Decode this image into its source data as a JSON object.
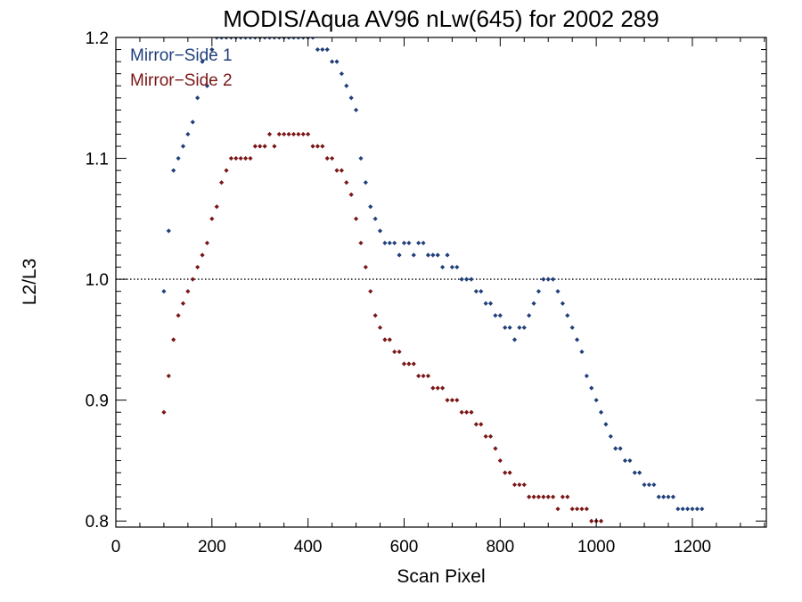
{
  "chart_data": {
    "type": "scatter",
    "title": "MODIS/Aqua AV96 nLw(645) for 2002 289",
    "xlabel": "Scan Pixel",
    "ylabel": "L2/L3",
    "xlim": [
      0,
      1354
    ],
    "ylim": [
      0.795,
      1.2
    ],
    "x_ticks": [
      0,
      200,
      400,
      600,
      800,
      1000,
      1200
    ],
    "y_ticks": [
      0.8,
      0.9,
      1.0,
      1.1,
      1.2
    ],
    "x_tick_labels": [
      "0",
      "200",
      "400",
      "600",
      "800",
      "1000",
      "1200"
    ],
    "y_tick_labels": [
      "0.8",
      "0.9",
      "1.0",
      "1.1",
      "1.2"
    ],
    "reference_line": {
      "y": 1.0,
      "style": "dotted"
    },
    "legend_position": "top-left",
    "series": [
      {
        "name": "Mirror−Side 1",
        "color": "#1f3f7a",
        "x": [
          100,
          110,
          120,
          130,
          140,
          150,
          160,
          170,
          180,
          190,
          200,
          210,
          220,
          230,
          240,
          250,
          260,
          270,
          280,
          290,
          300,
          310,
          320,
          330,
          340,
          350,
          360,
          370,
          380,
          390,
          400,
          410,
          420,
          430,
          440,
          450,
          460,
          470,
          480,
          490,
          500,
          510,
          520,
          530,
          540,
          550,
          560,
          570,
          580,
          590,
          600,
          610,
          620,
          630,
          640,
          650,
          660,
          670,
          680,
          690,
          700,
          710,
          720,
          730,
          740,
          750,
          760,
          770,
          780,
          790,
          800,
          810,
          820,
          830,
          840,
          850,
          860,
          870,
          880,
          890,
          900,
          910,
          920,
          930,
          940,
          950,
          960,
          970,
          980,
          990,
          1000,
          1010,
          1020,
          1030,
          1040,
          1050,
          1060,
          1070,
          1080,
          1090,
          1100,
          1110,
          1120,
          1130,
          1140,
          1150,
          1160,
          1170,
          1180,
          1190,
          1200,
          1210,
          1220
        ],
        "y": [
          0.99,
          1.04,
          1.09,
          1.1,
          1.11,
          1.12,
          1.13,
          1.15,
          1.18,
          1.16,
          1.19,
          1.2,
          1.2,
          1.2,
          1.2,
          1.2,
          1.2,
          1.2,
          1.2,
          1.2,
          1.2,
          1.2,
          1.2,
          1.2,
          1.2,
          1.2,
          1.2,
          1.2,
          1.2,
          1.2,
          1.2,
          1.2,
          1.19,
          1.19,
          1.19,
          1.18,
          1.18,
          1.17,
          1.16,
          1.15,
          1.14,
          1.1,
          1.08,
          1.06,
          1.05,
          1.04,
          1.03,
          1.03,
          1.03,
          1.02,
          1.03,
          1.03,
          1.02,
          1.03,
          1.03,
          1.02,
          1.02,
          1.02,
          1.01,
          1.02,
          1.01,
          1.01,
          1.0,
          1.0,
          1.0,
          0.99,
          0.99,
          0.98,
          0.98,
          0.97,
          0.97,
          0.96,
          0.96,
          0.95,
          0.96,
          0.96,
          0.97,
          0.98,
          0.99,
          1.0,
          1.0,
          1.0,
          0.99,
          0.98,
          0.97,
          0.96,
          0.95,
          0.94,
          0.92,
          0.91,
          0.9,
          0.89,
          0.88,
          0.87,
          0.86,
          0.86,
          0.85,
          0.85,
          0.84,
          0.84,
          0.83,
          0.83,
          0.83,
          0.82,
          0.82,
          0.82,
          0.82,
          0.81,
          0.81,
          0.81,
          0.81,
          0.81,
          0.81
        ]
      },
      {
        "name": "Mirror−Side 2",
        "color": "#7a1616",
        "x": [
          100,
          110,
          120,
          130,
          140,
          150,
          160,
          170,
          180,
          190,
          200,
          210,
          220,
          230,
          240,
          250,
          260,
          270,
          280,
          290,
          300,
          310,
          320,
          330,
          340,
          350,
          360,
          370,
          380,
          390,
          400,
          410,
          420,
          430,
          440,
          450,
          460,
          470,
          480,
          490,
          500,
          510,
          520,
          530,
          540,
          550,
          560,
          570,
          580,
          590,
          600,
          610,
          620,
          630,
          640,
          650,
          660,
          670,
          680,
          690,
          700,
          710,
          720,
          730,
          740,
          750,
          760,
          770,
          780,
          790,
          800,
          810,
          820,
          830,
          840,
          850,
          860,
          870,
          880,
          890,
          900,
          910,
          920,
          930,
          940,
          950,
          960,
          970,
          980,
          990,
          1000,
          1010
        ],
        "y": [
          0.89,
          0.92,
          0.95,
          0.97,
          0.98,
          0.99,
          1.0,
          1.01,
          1.02,
          1.03,
          1.05,
          1.06,
          1.08,
          1.09,
          1.1,
          1.1,
          1.1,
          1.1,
          1.1,
          1.11,
          1.11,
          1.11,
          1.12,
          1.11,
          1.12,
          1.12,
          1.12,
          1.12,
          1.12,
          1.12,
          1.12,
          1.11,
          1.11,
          1.11,
          1.1,
          1.1,
          1.09,
          1.09,
          1.08,
          1.07,
          1.05,
          1.03,
          1.01,
          0.99,
          0.97,
          0.96,
          0.95,
          0.95,
          0.94,
          0.94,
          0.93,
          0.93,
          0.93,
          0.92,
          0.92,
          0.92,
          0.91,
          0.91,
          0.91,
          0.9,
          0.9,
          0.9,
          0.89,
          0.89,
          0.89,
          0.88,
          0.88,
          0.87,
          0.87,
          0.86,
          0.85,
          0.84,
          0.84,
          0.83,
          0.83,
          0.83,
          0.82,
          0.82,
          0.82,
          0.82,
          0.82,
          0.82,
          0.81,
          0.82,
          0.82,
          0.81,
          0.81,
          0.81,
          0.81,
          0.8,
          0.8,
          0.8
        ]
      }
    ]
  }
}
